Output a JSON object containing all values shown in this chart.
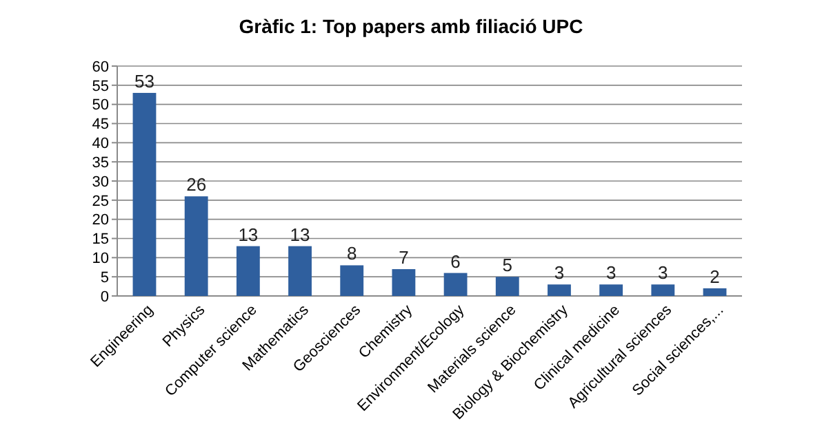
{
  "chart_data": {
    "type": "bar",
    "title": "Gràfic 1: Top papers amb filiació UPC",
    "categories": [
      "Engineering",
      "Physics",
      "Computer science",
      "Mathematics",
      "Geosciences",
      "Chemistry",
      "Environment/Ecology",
      "Materials science",
      "Biology & Biochemistry",
      "Clinical medicine",
      "Agricultural sciences",
      "Social sciences,..."
    ],
    "values": [
      53,
      26,
      13,
      13,
      8,
      7,
      6,
      5,
      3,
      3,
      3,
      2
    ],
    "color": "#2f5f9e",
    "ylim": [
      0,
      60
    ],
    "yticks": [
      0,
      5,
      10,
      15,
      20,
      25,
      30,
      35,
      40,
      45,
      50,
      55,
      60
    ],
    "grid": "y",
    "data_labels": true
  }
}
